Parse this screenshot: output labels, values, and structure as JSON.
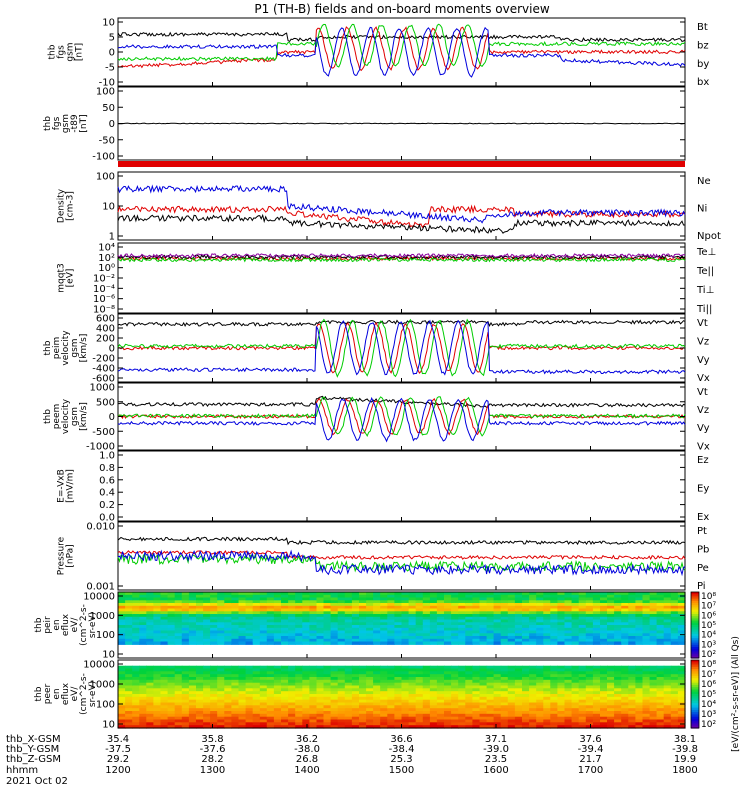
{
  "title": "P1 (TH-B) fields and on-board moments overview",
  "colors": {
    "black": "#000000",
    "red": "#e00000",
    "green": "#00cc00",
    "blue": "#0000dd",
    "purple": "#8a00a0"
  },
  "chart_data": [
    {
      "id": "fgs",
      "type": "line",
      "ylabel_lines": [
        "thb",
        "fgs",
        "gsm",
        "[nT]"
      ],
      "yticks": [
        "10",
        "5",
        "0",
        "-5",
        "-10"
      ],
      "ylim": [
        -10,
        10
      ],
      "series": [
        {
          "name": "Bt",
          "color": "#000000"
        },
        {
          "name": "bz",
          "color": "#e00000"
        },
        {
          "name": "by",
          "color": "#00cc00"
        },
        {
          "name": "bx",
          "color": "#0000dd"
        }
      ]
    },
    {
      "id": "fgs_minus_t89",
      "type": "line",
      "ylabel_lines": [
        "thb",
        "fgs",
        "gsm",
        "-t89",
        "[nT]"
      ],
      "yticks": [
        "100",
        "50",
        "0",
        "-50",
        "-100"
      ],
      "ylim": [
        -130,
        130
      ],
      "series": []
    },
    {
      "id": "density",
      "type": "line",
      "ylabel_lines": [
        "Density",
        "[cm-3]"
      ],
      "yticks": [
        "100",
        "10",
        "1"
      ],
      "ylim": [
        1,
        300
      ],
      "yscale": "log",
      "series": [
        {
          "name": "Ne",
          "color": "#e00000"
        },
        {
          "name": "Ni",
          "color": "#000000"
        },
        {
          "name": "Npot",
          "color": "#0000dd"
        }
      ]
    },
    {
      "id": "temperature",
      "type": "line",
      "ylabel_lines": [
        "mqqt3",
        "[eV]"
      ],
      "yticks": [
        "10⁴",
        "10²",
        "10⁰",
        "10⁻²",
        "10⁻⁴",
        "10⁻⁶",
        "10⁻⁸"
      ],
      "yscale": "log",
      "series": [
        {
          "name": "Te⊥",
          "color": "#e00000"
        },
        {
          "name": "Te||",
          "color": "#000000"
        },
        {
          "name": "Ti⊥",
          "color": "#8a00a0"
        },
        {
          "name": "Ti||",
          "color": "#00cc00"
        }
      ]
    },
    {
      "id": "ion_velocity",
      "type": "line",
      "ylabel_lines": [
        "thb",
        "peim",
        "velocity",
        "gsm",
        "[km/s]"
      ],
      "yticks": [
        "600",
        "400",
        "200",
        "0",
        "-200",
        "-400",
        "-600"
      ],
      "ylim": [
        -600,
        600
      ],
      "series": [
        {
          "name": "Vt",
          "color": "#000000"
        },
        {
          "name": "Vz",
          "color": "#e00000"
        },
        {
          "name": "Vy",
          "color": "#00cc00"
        },
        {
          "name": "Vx",
          "color": "#0000dd"
        }
      ]
    },
    {
      "id": "electron_velocity",
      "type": "line",
      "ylabel_lines": [
        "thb",
        "peem",
        "velocity",
        "gsm",
        "[km/s]"
      ],
      "yticks": [
        "1000",
        "500",
        "0",
        "-500",
        "-1000"
      ],
      "ylim": [
        -1000,
        1000
      ],
      "series": [
        {
          "name": "Vt",
          "color": "#000000"
        },
        {
          "name": "Vz",
          "color": "#e00000"
        },
        {
          "name": "Vy",
          "color": "#00cc00"
        },
        {
          "name": "Vx",
          "color": "#0000dd"
        }
      ]
    },
    {
      "id": "e_field",
      "type": "line",
      "ylabel_lines": [
        "E=-VxB",
        "[mV/m]"
      ],
      "yticks": [
        "1.0",
        "0.8",
        "0.6",
        "0.4",
        "0.2",
        "0.0"
      ],
      "ylim": [
        0,
        1
      ],
      "series": [
        {
          "name": "Ez",
          "color": "#e00000"
        },
        {
          "name": "Ey",
          "color": "#00cc00"
        },
        {
          "name": "Ex",
          "color": "#0000dd"
        }
      ]
    },
    {
      "id": "pressure",
      "type": "line",
      "ylabel_lines": [
        "Pressure",
        "[nPa]"
      ],
      "yticks": [
        "0.010",
        "0.001"
      ],
      "yscale": "log",
      "series": [
        {
          "name": "Pt",
          "color": "#000000"
        },
        {
          "name": "Pb",
          "color": "#e00000"
        },
        {
          "name": "Pe",
          "color": "#00cc00"
        },
        {
          "name": "Pi",
          "color": "#0000dd"
        }
      ]
    },
    {
      "id": "ion_spectrogram",
      "type": "heatmap",
      "ylabel_lines": [
        "thb",
        "peir",
        "en",
        "eflux",
        "eV/",
        "(cm^2-s-",
        "sr-eV)"
      ],
      "yticks": [
        "10000",
        "1000",
        "100",
        "10"
      ],
      "yscale": "log",
      "colorbar_ticks": [
        "10⁸",
        "10⁷",
        "10⁶",
        "10⁵",
        "10⁴",
        "10³",
        "10²"
      ]
    },
    {
      "id": "electron_spectrogram",
      "type": "heatmap",
      "ylabel_lines": [
        "thb",
        "peer",
        "en",
        "eflux",
        "eV/",
        "(cm^2-s-",
        "sr-eV)"
      ],
      "yticks": [
        "10000",
        "1000",
        "100",
        "10"
      ],
      "yscale": "log",
      "colorbar_ticks": [
        "10⁸",
        "10⁷",
        "10⁶",
        "10⁵",
        "10⁴",
        "10³",
        "10²"
      ]
    }
  ],
  "colorbar_label": "[eV/(cm²-s-sr-eV)]  (All Qs)",
  "xaxis": {
    "row_labels": [
      "thb_X-GSM",
      "thb_Y-GSM",
      "thb_Z-GSM",
      "hhmm",
      "2021 Oct 02"
    ],
    "x_gsm": [
      "35.4",
      "35.8",
      "36.2",
      "36.6",
      "37.1",
      "37.6",
      "38.1"
    ],
    "y_gsm": [
      "-37.5",
      "-37.6",
      "-38.0",
      "-38.4",
      "-39.0",
      "-39.4",
      "-39.8"
    ],
    "z_gsm": [
      "29.2",
      "28.2",
      "26.8",
      "25.3",
      "23.5",
      "21.7",
      "19.9"
    ],
    "hhmm": [
      "1200",
      "1300",
      "1400",
      "1500",
      "1600",
      "1700",
      "1800"
    ]
  }
}
